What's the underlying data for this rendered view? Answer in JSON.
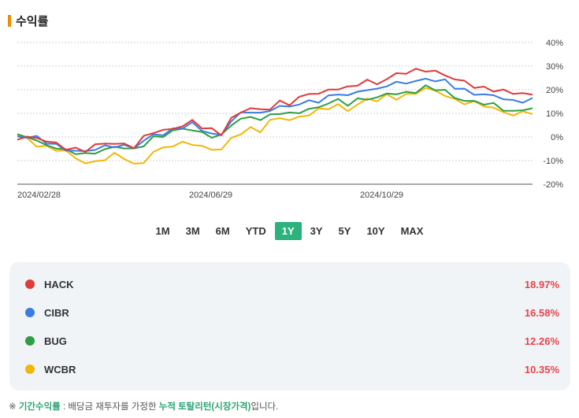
{
  "section": {
    "title": "수익률"
  },
  "chart_data": {
    "type": "line",
    "y_ticks": [
      "40%",
      "30%",
      "20%",
      "10%",
      "0%",
      "-10%",
      "-20%"
    ],
    "y_tick_values": [
      40,
      30,
      20,
      10,
      0,
      -10,
      -20
    ],
    "ylim": [
      -20,
      40
    ],
    "x_tick_labels": [
      "2024/02/28",
      "2024/06/29",
      "2024/10/29"
    ],
    "grid": true,
    "series": [
      {
        "name": "HACK",
        "color": "#e03a3a",
        "end_value": 18.97,
        "values": [
          0,
          0,
          -1,
          -2,
          -3,
          -4,
          -5,
          -6,
          -4,
          -3,
          -2,
          -3,
          -4,
          -1,
          2,
          3,
          4,
          5,
          6,
          4,
          3,
          2,
          8,
          10,
          12,
          11,
          13,
          15,
          14,
          16,
          18,
          19,
          20,
          21,
          20,
          22,
          24,
          23,
          25,
          26,
          27,
          28,
          29,
          28,
          26,
          24,
          23,
          22,
          21,
          20,
          19,
          18,
          19,
          18
        ]
      },
      {
        "name": "CIBR",
        "color": "#3a7de0",
        "end_value": 16.58,
        "values": [
          0,
          0,
          -1,
          -2,
          -3,
          -5,
          -6,
          -7,
          -5,
          -4,
          -3,
          -4,
          -5,
          -2,
          1,
          2,
          3,
          4,
          5,
          3,
          2,
          1,
          7,
          9,
          11,
          10,
          12,
          13,
          12,
          14,
          15,
          16,
          17,
          18,
          17,
          19,
          21,
          20,
          22,
          22,
          23,
          24,
          25,
          24,
          23,
          21,
          20,
          19,
          18,
          17,
          16,
          15,
          16,
          16
        ]
      },
      {
        "name": "BUG",
        "color": "#2f9e44",
        "end_value": 12.26,
        "values": [
          0,
          0,
          -2,
          -3,
          -4,
          -6,
          -7,
          -8,
          -6,
          -5,
          -4,
          -5,
          -6,
          -3,
          0,
          1,
          2,
          3,
          3,
          2,
          1,
          0,
          5,
          7,
          9,
          8,
          9,
          10,
          9,
          11,
          12,
          13,
          14,
          15,
          14,
          16,
          17,
          16,
          18,
          18,
          19,
          20,
          21,
          20,
          19,
          17,
          16,
          15,
          14,
          13,
          12,
          11,
          12,
          12
        ]
      },
      {
        "name": "WCBR",
        "color": "#f2b705",
        "end_value": 10.35,
        "values": [
          0,
          -1,
          -3,
          -4,
          -5,
          -7,
          -9,
          -11,
          -10,
          -9,
          -8,
          -9,
          -12,
          -10,
          -6,
          -5,
          -4,
          -3,
          -2,
          -4,
          -5,
          -6,
          -1,
          2,
          4,
          3,
          6,
          8,
          7,
          9,
          10,
          11,
          12,
          13,
          12,
          14,
          16,
          15,
          17,
          17,
          18,
          19,
          20,
          19,
          18,
          16,
          15,
          14,
          13,
          12,
          11,
          10,
          10,
          10
        ]
      }
    ]
  },
  "ranges": {
    "items": [
      "1M",
      "3M",
      "6M",
      "YTD",
      "1Y",
      "3Y",
      "5Y",
      "10Y",
      "MAX"
    ],
    "active": "1Y"
  },
  "legend": [
    {
      "ticker": "HACK",
      "value": "18.97%",
      "color": "#e03a3a"
    },
    {
      "ticker": "CIBR",
      "value": "16.58%",
      "color": "#3a7de0"
    },
    {
      "ticker": "BUG",
      "value": "12.26%",
      "color": "#2f9e44"
    },
    {
      "ticker": "WCBR",
      "value": "10.35%",
      "color": "#f2b705"
    }
  ],
  "footnote": {
    "prefix": "※ ",
    "term": "기간수익률",
    "middle": " : 배당금 재투자를 가정한 ",
    "highlight": "누적 토탈리턴(시장가격)",
    "suffix": "입니다."
  }
}
